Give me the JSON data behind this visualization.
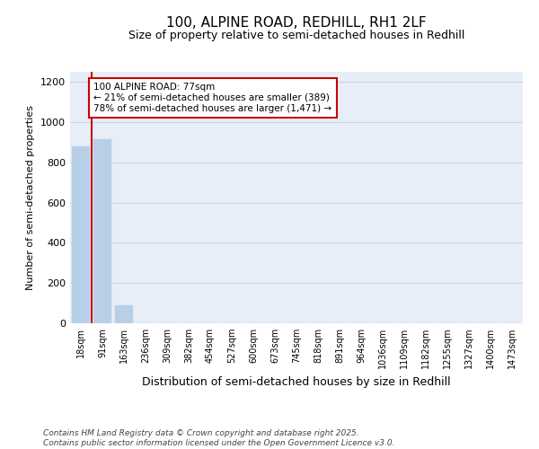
{
  "title1": "100, ALPINE ROAD, REDHILL, RH1 2LF",
  "title2": "Size of property relative to semi-detached houses in Redhill",
  "xlabel": "Distribution of semi-detached houses by size in Redhill",
  "ylabel": "Number of semi-detached properties",
  "categories": [
    "18sqm",
    "91sqm",
    "163sqm",
    "236sqm",
    "309sqm",
    "382sqm",
    "454sqm",
    "527sqm",
    "600sqm",
    "673sqm",
    "745sqm",
    "818sqm",
    "891sqm",
    "964sqm",
    "1036sqm",
    "1109sqm",
    "1182sqm",
    "1255sqm",
    "1327sqm",
    "1400sqm",
    "1473sqm"
  ],
  "values": [
    880,
    915,
    90,
    0,
    0,
    0,
    0,
    0,
    0,
    0,
    0,
    0,
    0,
    0,
    0,
    0,
    0,
    0,
    0,
    0,
    0
  ],
  "bar_color": "#b8cfe8",
  "bar_edge_color": "#b8cfe8",
  "grid_color": "#c8d4e8",
  "background_color": "#e8eef8",
  "vline_color": "#cc0000",
  "annotation_title": "100 ALPINE ROAD: 77sqm",
  "annotation_line1": "← 21% of semi-detached houses are smaller (389)",
  "annotation_line2": "78% of semi-detached houses are larger (1,471) →",
  "annotation_box_color": "#cc0000",
  "ylim": [
    0,
    1250
  ],
  "yticks": [
    0,
    200,
    400,
    600,
    800,
    1000,
    1200
  ],
  "footer1": "Contains HM Land Registry data © Crown copyright and database right 2025.",
  "footer2": "Contains public sector information licensed under the Open Government Licence v3.0."
}
